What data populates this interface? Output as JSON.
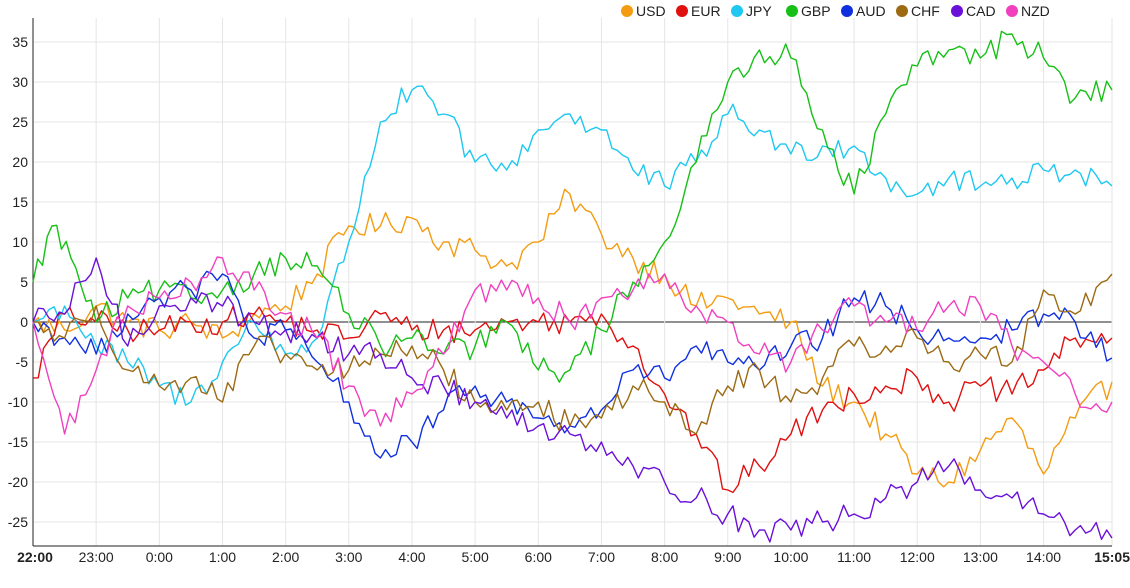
{
  "chart_data": {
    "type": "line",
    "title": "",
    "xlabel": "",
    "ylabel": "",
    "ylim": [
      -28,
      38
    ],
    "yticks": [
      -25,
      -20,
      -15,
      -10,
      -5,
      0,
      5,
      10,
      15,
      20,
      25,
      30,
      35
    ],
    "x_range_hours": [
      0,
      17.0833
    ],
    "xticks": [
      {
        "label": "22:00",
        "hour": 0,
        "bold": true
      },
      {
        "label": "23:00",
        "hour": 1
      },
      {
        "label": "0:00",
        "hour": 2
      },
      {
        "label": "1:00",
        "hour": 3
      },
      {
        "label": "2:00",
        "hour": 4
      },
      {
        "label": "3:00",
        "hour": 5
      },
      {
        "label": "4:00",
        "hour": 6
      },
      {
        "label": "5:00",
        "hour": 7
      },
      {
        "label": "6:00",
        "hour": 8
      },
      {
        "label": "7:00",
        "hour": 9
      },
      {
        "label": "8:00",
        "hour": 10
      },
      {
        "label": "9:00",
        "hour": 11
      },
      {
        "label": "10:00",
        "hour": 12
      },
      {
        "label": "11:00",
        "hour": 13
      },
      {
        "label": "12:00",
        "hour": 14
      },
      {
        "label": "13:00",
        "hour": 15
      },
      {
        "label": "14:00",
        "hour": 16
      },
      {
        "label": "15:05",
        "hour": 17.0833,
        "bold": true
      }
    ],
    "legend_position": "top-right",
    "grid": true,
    "series": [
      {
        "name": "USD",
        "color": "#f39c12",
        "values": [
          [
            0,
            0
          ],
          [
            0.5,
            -1
          ],
          [
            1,
            2
          ],
          [
            1.5,
            0
          ],
          [
            2,
            -1
          ],
          [
            2.5,
            0
          ],
          [
            3,
            -2
          ],
          [
            3.5,
            1
          ],
          [
            4,
            2
          ],
          [
            4.5,
            6
          ],
          [
            5,
            12
          ],
          [
            5.5,
            12
          ],
          [
            6,
            13
          ],
          [
            6.5,
            10
          ],
          [
            7,
            9
          ],
          [
            7.5,
            7
          ],
          [
            8,
            10
          ],
          [
            8.5,
            16
          ],
          [
            9,
            11
          ],
          [
            9.5,
            8
          ],
          [
            10,
            6
          ],
          [
            10.5,
            2
          ],
          [
            11,
            3
          ],
          [
            11.5,
            1
          ],
          [
            12,
            0
          ],
          [
            12.5,
            -8
          ],
          [
            13,
            -10
          ],
          [
            13.5,
            -14
          ],
          [
            14,
            -19
          ],
          [
            14.5,
            -20
          ],
          [
            15,
            -16
          ],
          [
            15.5,
            -12
          ],
          [
            16,
            -19
          ],
          [
            16.5,
            -12
          ],
          [
            17.0833,
            -7.5
          ]
        ]
      },
      {
        "name": "EUR",
        "color": "#e01010",
        "values": [
          [
            0,
            -7
          ],
          [
            0.5,
            1
          ],
          [
            1,
            0
          ],
          [
            1.5,
            -1
          ],
          [
            2,
            -1
          ],
          [
            2.5,
            0
          ],
          [
            3,
            0
          ],
          [
            3.5,
            1
          ],
          [
            4,
            0
          ],
          [
            4.5,
            -1
          ],
          [
            5,
            -2
          ],
          [
            5.5,
            1
          ],
          [
            6,
            -1
          ],
          [
            6.5,
            -1
          ],
          [
            7,
            -1
          ],
          [
            7.5,
            0
          ],
          [
            8,
            0
          ],
          [
            8.5,
            0
          ],
          [
            9,
            1
          ],
          [
            9.5,
            -3
          ],
          [
            10,
            -9
          ],
          [
            10.5,
            -14
          ],
          [
            11,
            -21
          ],
          [
            11.5,
            -18
          ],
          [
            12,
            -14
          ],
          [
            12.5,
            -11
          ],
          [
            13,
            -9
          ],
          [
            13.5,
            -8
          ],
          [
            14,
            -7
          ],
          [
            14.5,
            -10
          ],
          [
            15,
            -8
          ],
          [
            15.5,
            -9
          ],
          [
            16,
            -6
          ],
          [
            16.5,
            -2
          ],
          [
            17.0833,
            -2
          ]
        ]
      },
      {
        "name": "JPY",
        "color": "#1ec8f0",
        "values": [
          [
            0,
            0
          ],
          [
            0.5,
            2
          ],
          [
            1,
            -3
          ],
          [
            1.5,
            -5
          ],
          [
            2,
            -8
          ],
          [
            2.5,
            -10
          ],
          [
            3,
            -5
          ],
          [
            3.5,
            0
          ],
          [
            4,
            -4
          ],
          [
            4.5,
            -2
          ],
          [
            5,
            10
          ],
          [
            5.5,
            25
          ],
          [
            6,
            29
          ],
          [
            6.5,
            26
          ],
          [
            7,
            20
          ],
          [
            7.5,
            19
          ],
          [
            8,
            24
          ],
          [
            8.5,
            26
          ],
          [
            9,
            24
          ],
          [
            9.5,
            19
          ],
          [
            10,
            17
          ],
          [
            10.5,
            20
          ],
          [
            11,
            26
          ],
          [
            11.5,
            24
          ],
          [
            12,
            21
          ],
          [
            12.5,
            22
          ],
          [
            13,
            22
          ],
          [
            13.5,
            18
          ],
          [
            14,
            16
          ],
          [
            14.5,
            18
          ],
          [
            15,
            17
          ],
          [
            15.5,
            18
          ],
          [
            16,
            19
          ],
          [
            16.5,
            19
          ],
          [
            17.0833,
            17
          ]
        ]
      },
      {
        "name": "GBP",
        "color": "#16c016",
        "values": [
          [
            0,
            5
          ],
          [
            0.3,
            12
          ],
          [
            0.6,
            8
          ],
          [
            1,
            0
          ],
          [
            1.5,
            3
          ],
          [
            2,
            4
          ],
          [
            2.5,
            3
          ],
          [
            3,
            4
          ],
          [
            3.5,
            6
          ],
          [
            4,
            8
          ],
          [
            4.5,
            7
          ],
          [
            5,
            1
          ],
          [
            5.5,
            -3
          ],
          [
            6,
            -2
          ],
          [
            6.5,
            -4
          ],
          [
            7,
            -3
          ],
          [
            7.5,
            0
          ],
          [
            8,
            -6
          ],
          [
            8.5,
            -6
          ],
          [
            9,
            -1
          ],
          [
            9.5,
            5
          ],
          [
            10,
            10
          ],
          [
            10.5,
            20
          ],
          [
            11,
            30
          ],
          [
            11.5,
            34
          ],
          [
            12,
            33
          ],
          [
            12.5,
            24
          ],
          [
            13,
            16
          ],
          [
            13.5,
            26
          ],
          [
            14,
            32
          ],
          [
            14.5,
            34
          ],
          [
            15,
            33
          ],
          [
            15.5,
            36
          ],
          [
            16,
            33
          ],
          [
            16.5,
            28
          ],
          [
            17.0833,
            29
          ]
        ]
      },
      {
        "name": "AUD",
        "color": "#1030e0",
        "values": [
          [
            0,
            0
          ],
          [
            0.5,
            -2
          ],
          [
            1,
            -4
          ],
          [
            1.5,
            1
          ],
          [
            2,
            3
          ],
          [
            2.5,
            4
          ],
          [
            3,
            6
          ],
          [
            3.5,
            -2
          ],
          [
            4,
            -1
          ],
          [
            4.5,
            -5
          ],
          [
            5,
            -10
          ],
          [
            5.5,
            -17
          ],
          [
            6,
            -15
          ],
          [
            6.5,
            -11
          ],
          [
            7,
            -8
          ],
          [
            7.5,
            -10
          ],
          [
            8,
            -12
          ],
          [
            8.5,
            -13
          ],
          [
            9,
            -11
          ],
          [
            9.5,
            -6
          ],
          [
            10,
            -7
          ],
          [
            10.5,
            -3
          ],
          [
            11,
            -5
          ],
          [
            11.5,
            -6
          ],
          [
            12,
            -3
          ],
          [
            12.5,
            -2
          ],
          [
            13,
            3
          ],
          [
            13.5,
            2
          ],
          [
            14,
            -1
          ],
          [
            14.5,
            -2
          ],
          [
            15,
            -2
          ],
          [
            15.5,
            -1
          ],
          [
            16,
            1
          ],
          [
            16.5,
            0
          ],
          [
            17.0833,
            -4.5
          ]
        ]
      },
      {
        "name": "CHF",
        "color": "#9b6a12",
        "values": [
          [
            0,
            0
          ],
          [
            0.5,
            -2
          ],
          [
            1,
            2
          ],
          [
            1.5,
            -6
          ],
          [
            2,
            -8
          ],
          [
            2.5,
            -7
          ],
          [
            3,
            -10
          ],
          [
            3.5,
            -3
          ],
          [
            4,
            -4
          ],
          [
            4.5,
            -6
          ],
          [
            5,
            -6
          ],
          [
            5.5,
            -4
          ],
          [
            6,
            -3
          ],
          [
            6.5,
            -6
          ],
          [
            7,
            -10
          ],
          [
            7.5,
            -11
          ],
          [
            8,
            -10
          ],
          [
            8.5,
            -13
          ],
          [
            9,
            -12
          ],
          [
            9.5,
            -8
          ],
          [
            10,
            -10
          ],
          [
            10.5,
            -14
          ],
          [
            11,
            -8
          ],
          [
            11.5,
            -6
          ],
          [
            12,
            -10
          ],
          [
            12.5,
            -7
          ],
          [
            13,
            -3
          ],
          [
            13.5,
            -3
          ],
          [
            14,
            -2
          ],
          [
            14.5,
            -5
          ],
          [
            15,
            -4
          ],
          [
            15.5,
            -5
          ],
          [
            16,
            4
          ],
          [
            16.5,
            1
          ],
          [
            17.0833,
            6
          ]
        ]
      },
      {
        "name": "CAD",
        "color": "#6a10d8",
        "values": [
          [
            0,
            0
          ],
          [
            0.5,
            1
          ],
          [
            1,
            8
          ],
          [
            1.5,
            -3
          ],
          [
            2,
            2
          ],
          [
            2.5,
            3
          ],
          [
            3,
            2
          ],
          [
            3.5,
            0
          ],
          [
            4,
            -1
          ],
          [
            4.5,
            -2
          ],
          [
            5,
            -4
          ],
          [
            5.5,
            -4
          ],
          [
            6,
            -7
          ],
          [
            6.5,
            -8
          ],
          [
            7,
            -10
          ],
          [
            7.5,
            -12
          ],
          [
            8,
            -13
          ],
          [
            8.5,
            -14
          ],
          [
            9,
            -15
          ],
          [
            9.5,
            -18
          ],
          [
            10,
            -20
          ],
          [
            10.5,
            -22
          ],
          [
            11,
            -24
          ],
          [
            11.5,
            -26
          ],
          [
            12,
            -26
          ],
          [
            12.5,
            -25
          ],
          [
            13,
            -24
          ],
          [
            13.5,
            -22
          ],
          [
            14,
            -20
          ],
          [
            14.5,
            -18
          ],
          [
            15,
            -21
          ],
          [
            15.5,
            -22
          ],
          [
            16,
            -24
          ],
          [
            16.5,
            -26
          ],
          [
            17.0833,
            -27
          ]
        ]
      },
      {
        "name": "NZD",
        "color": "#f040c0",
        "values": [
          [
            0,
            0
          ],
          [
            0.5,
            -14
          ],
          [
            1,
            -6
          ],
          [
            1.5,
            2
          ],
          [
            2,
            3
          ],
          [
            2.5,
            5
          ],
          [
            3,
            8
          ],
          [
            3.5,
            4
          ],
          [
            4,
            1
          ],
          [
            4.5,
            -2
          ],
          [
            5,
            -8
          ],
          [
            5.5,
            -13
          ],
          [
            6,
            -9
          ],
          [
            6.5,
            -4
          ],
          [
            7,
            4
          ],
          [
            7.5,
            4
          ],
          [
            8,
            3
          ],
          [
            8.5,
            0
          ],
          [
            9,
            3
          ],
          [
            9.5,
            4
          ],
          [
            10,
            6
          ],
          [
            10.5,
            2
          ],
          [
            11,
            0
          ],
          [
            11.5,
            -4
          ],
          [
            12,
            -5
          ],
          [
            12.5,
            -1
          ],
          [
            13,
            2
          ],
          [
            13.5,
            0
          ],
          [
            14,
            -1
          ],
          [
            14.5,
            2
          ],
          [
            15,
            2
          ],
          [
            15.5,
            -3
          ],
          [
            16,
            -5
          ],
          [
            16.5,
            -9
          ],
          [
            17.0833,
            -10
          ]
        ]
      }
    ]
  }
}
